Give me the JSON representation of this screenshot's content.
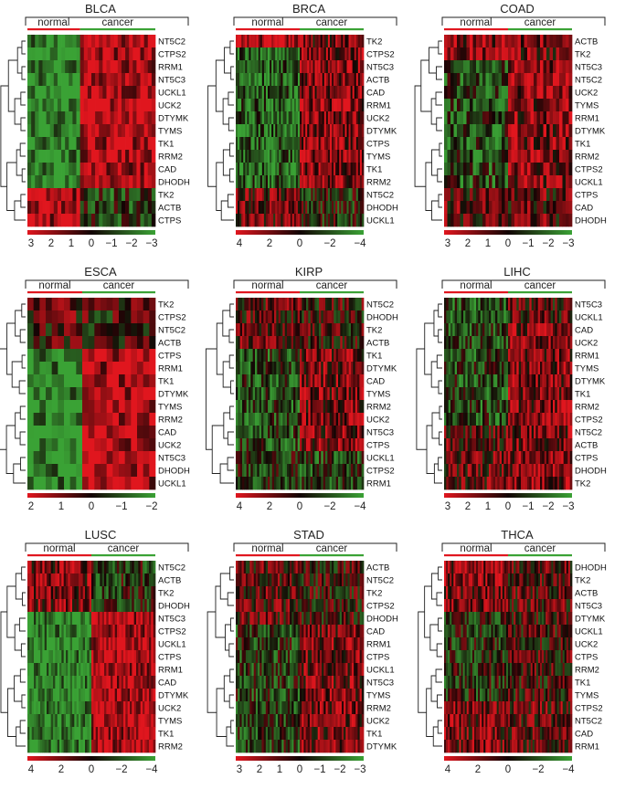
{
  "figure": {
    "description_free": true,
    "cell_low_color": "#3aa235",
    "cell_mid_color": "#120404",
    "cell_high_color": "#e0161e",
    "normal_bar_color": "#e0161e",
    "cancer_bar_color": "#3aa235",
    "bracket_color": "#222222",
    "tree_color": "#222222"
  },
  "chart_data": [
    {
      "type": "heatmap",
      "title": "BLCA",
      "groups": [
        "normal",
        "cancer"
      ],
      "genes": [
        "NT5C2",
        "CTPS2",
        "RRM1",
        "NT5C3",
        "UCKL1",
        "UCK2",
        "DTYMK",
        "TYMS",
        "TK1",
        "RRM2",
        "CAD",
        "DHODH",
        "TK2",
        "ACTB",
        "CTPS"
      ],
      "legend_ticks": [
        "3",
        "2",
        "1",
        "0",
        "−1",
        "−2",
        "−3"
      ],
      "scale_range": [
        -3,
        3
      ],
      "columns_normal": 14,
      "columns_cancer": 20,
      "profile": "blca"
    },
    {
      "type": "heatmap",
      "title": "BRCA",
      "groups": [
        "normal",
        "cancer"
      ],
      "genes": [
        "TK2",
        "CTPS2",
        "NT5C3",
        "ACTB",
        "CAD",
        "RRM1",
        "UCK2",
        "DTYMK",
        "CTPS",
        "TYMS",
        "TK1",
        "RRM2",
        "NT5C2",
        "DHODH",
        "UCKL1"
      ],
      "legend_ticks": [
        "4",
        "2",
        "0",
        "−2",
        "−4"
      ],
      "scale_range": [
        -4,
        4
      ],
      "columns_normal": 34,
      "columns_cancer": 34,
      "profile": "brca"
    },
    {
      "type": "heatmap",
      "title": "COAD",
      "groups": [
        "normal",
        "cancer"
      ],
      "genes": [
        "ACTB",
        "TK2",
        "NT5C3",
        "NT5C2",
        "UCK2",
        "TYMS",
        "RRM1",
        "DTYMK",
        "TK1",
        "RRM2",
        "CTPS2",
        "UCKL1",
        "CTPS",
        "CAD",
        "DHODH"
      ],
      "legend_ticks": [
        "3",
        "2",
        "1",
        "0",
        "−1",
        "−2",
        "−3"
      ],
      "scale_range": [
        -3,
        3
      ],
      "columns_normal": 20,
      "columns_cancer": 20,
      "profile": "coad"
    },
    {
      "type": "heatmap",
      "title": "ESCA",
      "groups": [
        "normal",
        "cancer"
      ],
      "genes": [
        "TK2",
        "CTPS2",
        "NT5C2",
        "ACTB",
        "CTPS",
        "RRM1",
        "TK1",
        "DTYMK",
        "TYMS",
        "RRM2",
        "CAD",
        "UCK2",
        "NT5C3",
        "DHODH",
        "UCKL1"
      ],
      "legend_ticks": [
        "2",
        "1",
        "0",
        "−1",
        "−2"
      ],
      "scale_range": [
        -2,
        2
      ],
      "columns_normal": 9,
      "columns_cancer": 12,
      "profile": "esca"
    },
    {
      "type": "heatmap",
      "title": "KIRP",
      "groups": [
        "normal",
        "cancer"
      ],
      "genes": [
        "NT5C2",
        "DHODH",
        "TK2",
        "ACTB",
        "TK1",
        "DTYMK",
        "CAD",
        "TYMS",
        "RRM2",
        "UCK2",
        "NT5C3",
        "CTPS",
        "UCKL1",
        "CTPS2",
        "RRM1"
      ],
      "legend_ticks": [
        "4",
        "2",
        "0",
        "−2",
        "−4"
      ],
      "scale_range": [
        -4,
        4
      ],
      "columns_normal": 30,
      "columns_cancer": 30,
      "profile": "kirp"
    },
    {
      "type": "heatmap",
      "title": "LIHC",
      "groups": [
        "normal",
        "cancer"
      ],
      "genes": [
        "NT5C3",
        "UCKL1",
        "CAD",
        "UCK2",
        "RRM1",
        "TYMS",
        "DTYMK",
        "TK1",
        "RRM2",
        "CTPS2",
        "NT5C2",
        "ACTB",
        "CTPS",
        "DHODH",
        "TK2"
      ],
      "legend_ticks": [
        "3",
        "2",
        "1",
        "0",
        "−1",
        "−2",
        "−3"
      ],
      "scale_range": [
        -3,
        3
      ],
      "columns_normal": 30,
      "columns_cancer": 30,
      "profile": "lihc"
    },
    {
      "type": "heatmap",
      "title": "LUSC",
      "groups": [
        "normal",
        "cancer"
      ],
      "genes": [
        "NT5C2",
        "ACTB",
        "TK2",
        "DHODH",
        "NT5C3",
        "CTPS2",
        "UCKL1",
        "CTPS",
        "RRM1",
        "CAD",
        "DTYMK",
        "UCK2",
        "TYMS",
        "TK1",
        "RRM2"
      ],
      "legend_ticks": [
        "4",
        "2",
        "0",
        "−2",
        "−4"
      ],
      "scale_range": [
        -4,
        4
      ],
      "columns_normal": 30,
      "columns_cancer": 30,
      "profile": "lusc"
    },
    {
      "type": "heatmap",
      "title": "STAD",
      "groups": [
        "normal",
        "cancer"
      ],
      "genes": [
        "ACTB",
        "NT5C2",
        "TK2",
        "CTPS2",
        "DHODH",
        "CAD",
        "RRM1",
        "CTPS",
        "UCKL1",
        "NT5C3",
        "TYMS",
        "RRM2",
        "UCK2",
        "TK1",
        "DTYMK"
      ],
      "legend_ticks": [
        "3",
        "2",
        "1",
        "0",
        "−1",
        "−2",
        "−3"
      ],
      "scale_range": [
        -3,
        3
      ],
      "columns_normal": 32,
      "columns_cancer": 32,
      "profile": "stad"
    },
    {
      "type": "heatmap",
      "title": "THCA",
      "groups": [
        "normal",
        "cancer"
      ],
      "genes": [
        "DHODH",
        "TK2",
        "ACTB",
        "NT5C3",
        "DTYMK",
        "UCKL1",
        "UCK2",
        "CTPS",
        "RRM2",
        "TK1",
        "TYMS",
        "CTPS2",
        "NT5C2",
        "CAD",
        "RRM1"
      ],
      "legend_ticks": [
        "4",
        "2",
        "0",
        "−2",
        "−4"
      ],
      "scale_range": [
        -4,
        4
      ],
      "columns_normal": 34,
      "columns_cancer": 34,
      "profile": "thca"
    }
  ]
}
